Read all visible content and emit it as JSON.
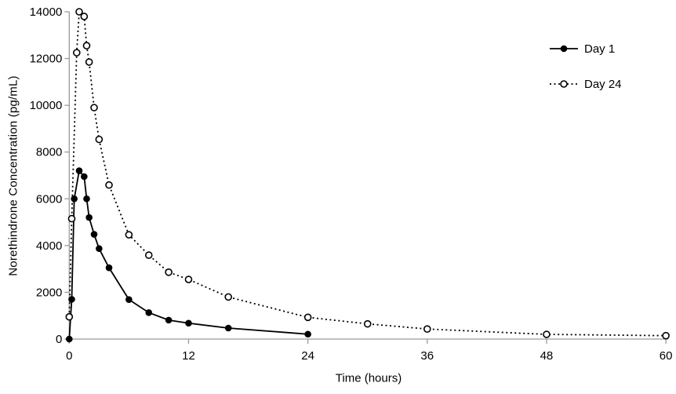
{
  "chart_data": {
    "type": "line",
    "title": "",
    "xlabel": "Time (hours)",
    "ylabel": "Norethindrone Concentration (pg/mL)",
    "xlim": [
      0,
      60
    ],
    "ylim": [
      0,
      14000
    ],
    "xticks": [
      0,
      12,
      24,
      36,
      48,
      60
    ],
    "yticks": [
      0,
      2000,
      4000,
      6000,
      8000,
      10000,
      12000,
      14000
    ],
    "grid": false,
    "legend_position": "upper-right",
    "axis_color": "#9b9b9b",
    "series_color": "#000000",
    "series": [
      {
        "name": "Day 1",
        "line_style": "solid",
        "marker": "filled-circle",
        "x": [
          0,
          0.25,
          0.5,
          1,
          1.5,
          1.75,
          2,
          2.5,
          3,
          4,
          6,
          8,
          10,
          12,
          16,
          24
        ],
        "y": [
          0,
          1700,
          6000,
          7200,
          6950,
          6000,
          5200,
          4480,
          3870,
          3050,
          1690,
          1130,
          810,
          680,
          470,
          210
        ]
      },
      {
        "name": "Day 24",
        "line_style": "dotted",
        "marker": "open-circle",
        "x": [
          0,
          0.25,
          0.75,
          1,
          1.5,
          1.75,
          2,
          2.5,
          3,
          4,
          6,
          8,
          10,
          12,
          16,
          24,
          30,
          36,
          48,
          60
        ],
        "y": [
          950,
          5150,
          12250,
          14000,
          13800,
          12550,
          11850,
          9900,
          8540,
          6590,
          4460,
          3590,
          2860,
          2550,
          1800,
          930,
          650,
          430,
          200,
          145
        ]
      }
    ]
  }
}
